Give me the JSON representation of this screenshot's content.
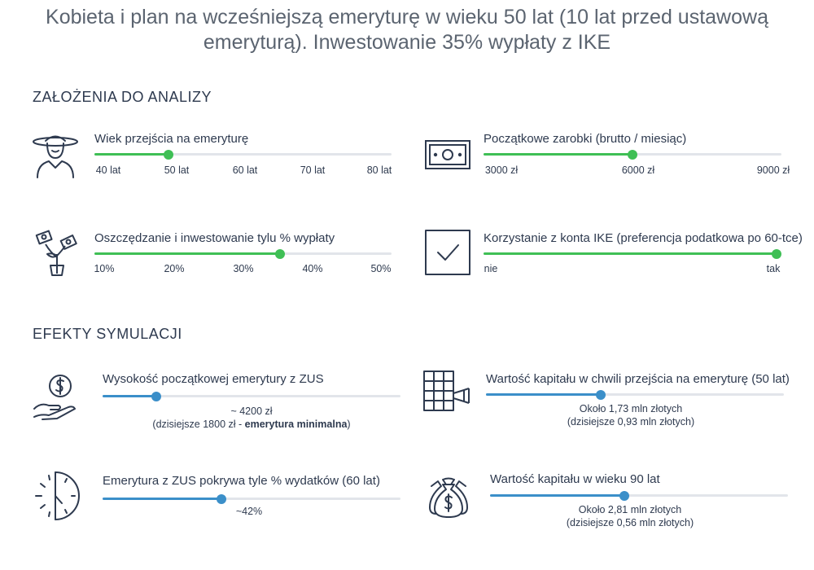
{
  "title": {
    "line1": "Kobieta i plan na wcześniejszą emeryturę w wieku 50 lat (10 lat przed ustawową",
    "line2": "emeryturą). Inwestowanie 35% wypłaty z IKE"
  },
  "assumptions": {
    "heading": "ZAŁOŻENIA DO ANALIZY",
    "age": {
      "label": "Wiek przejścia na emeryturę",
      "ticks": [
        "40 lat",
        "50 lat",
        "60 lat",
        "70 lat",
        "80 lat"
      ],
      "value": 0.25,
      "icon": "woman-icon"
    },
    "salary": {
      "label": "Początkowe zarobki (brutto / miesiąc)",
      "ticks": [
        "3000 zł",
        "6000 zł",
        "9000 zł"
      ],
      "value": 0.5,
      "icon": "banknote-icon"
    },
    "saving": {
      "label": "Oszczędzanie i inwestowanie tylu % wypłaty",
      "ticks": [
        "10%",
        "20%",
        "30%",
        "40%",
        "50%"
      ],
      "value": 0.625,
      "icon": "money-plant-icon"
    },
    "ike": {
      "label": "Korzystanie z konta IKE (preferencja podatkowa po 60-tce)",
      "ticks": [
        "nie",
        "tak"
      ],
      "value": 1.0,
      "icon": "checkbox-icon"
    },
    "accent": "#3fbf55"
  },
  "effects": {
    "heading": "EFEKTY SYMULACJI",
    "pension": {
      "label": "Wysokość początkowej emerytury z ZUS",
      "value": 0.18,
      "note1": "~ 4200 zł",
      "note2a": "(dzisiejsze 1800 zł - ",
      "note2b": "emerytura minimalna",
      "note2c": ")",
      "icon": "hand-coin-icon"
    },
    "capital_retire": {
      "label": "Wartość kapitału w chwili przejścia na emeryturę (50 lat)",
      "value": 0.385,
      "note1": "Około 1,73 mln złotych",
      "note2": "(dzisiejsze 0,93 mln złotych)",
      "icon": "vault-icon"
    },
    "coverage": {
      "label": "Emerytura z ZUS pokrywa tyle % wydatków (60 lat)",
      "value": 0.4,
      "note1": "~42%",
      "icon": "clock-icon"
    },
    "capital_90": {
      "label": "Wartość kapitału w wieku 90 lat",
      "value": 0.45,
      "note1": "Około 2,81 mln złotych",
      "note2": "(dzisiejsze 0,56 mln złotych)",
      "icon": "money-bags-icon"
    },
    "accent": "#3b8fc9"
  }
}
